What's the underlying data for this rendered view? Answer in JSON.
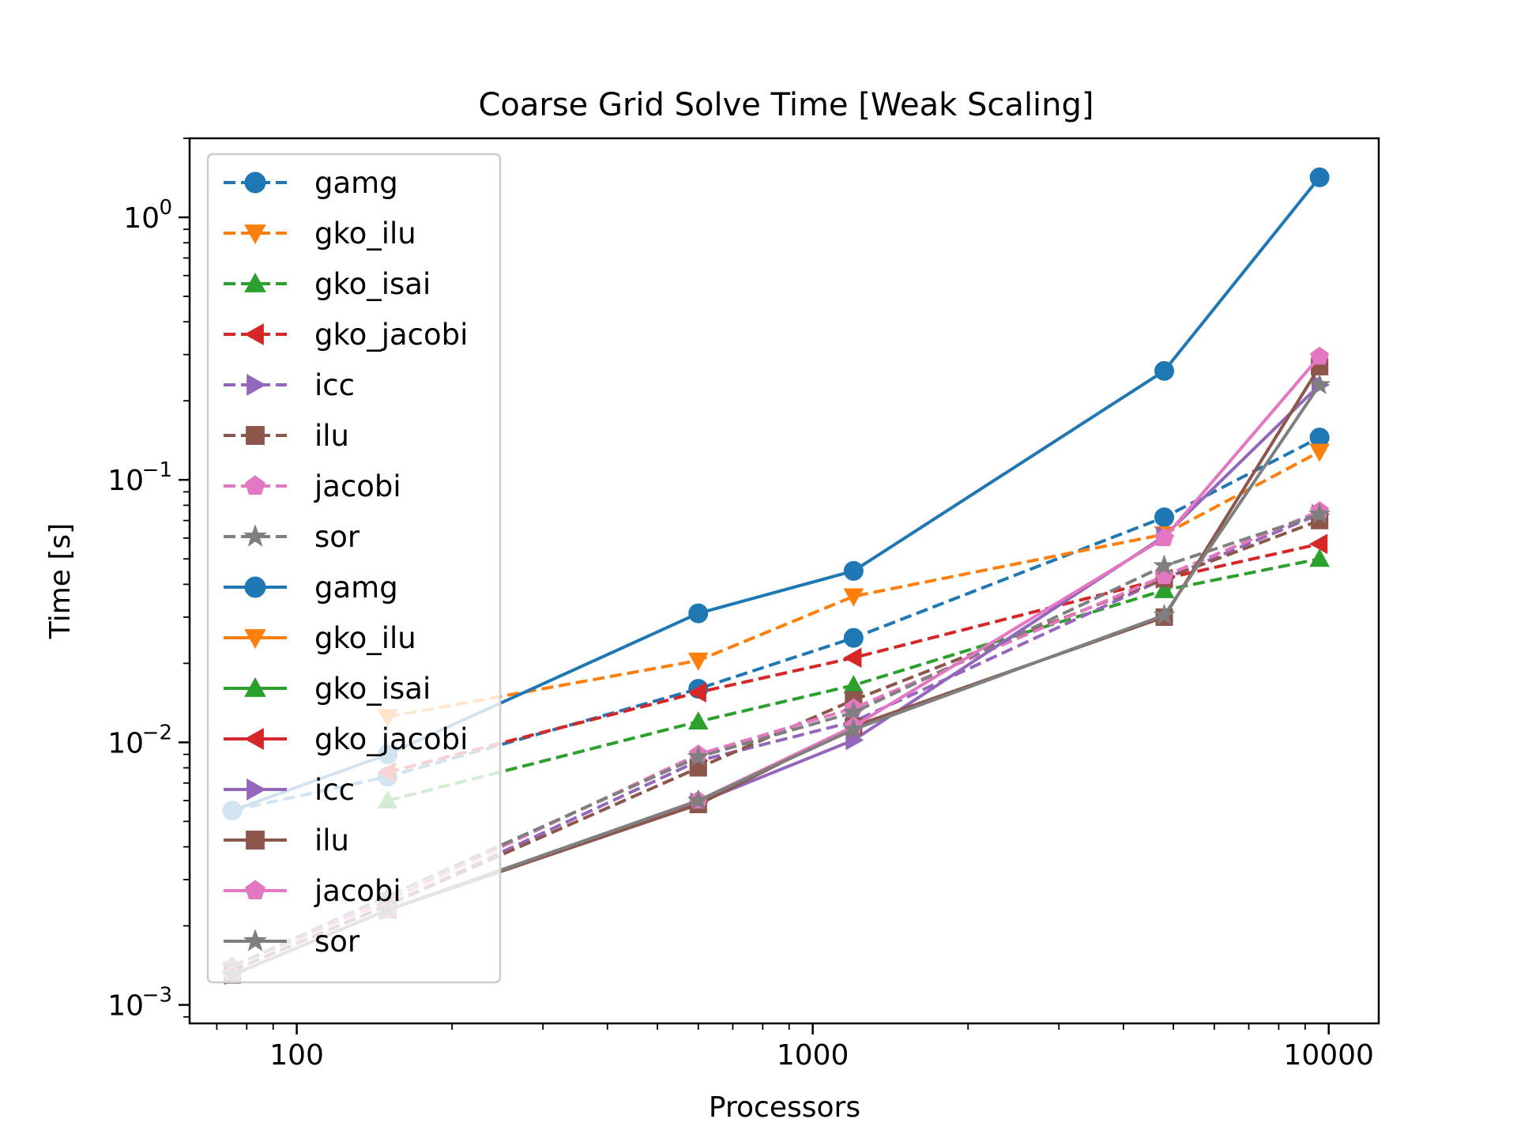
{
  "chart_data": {
    "type": "line",
    "title": "Coarse Grid Solve Time [Weak Scaling]",
    "xlabel": "Processors",
    "ylabel": "Time [s]",
    "xscale": "log",
    "yscale": "log",
    "xlim": [
      62,
      12500
    ],
    "ylim": [
      0.00085,
      2.0
    ],
    "xticks": [
      {
        "value": 100,
        "label": "100"
      },
      {
        "value": 1000,
        "label": "1000"
      },
      {
        "value": 10000,
        "label": "10000"
      }
    ],
    "yticks": [
      {
        "value": 0.001,
        "base": "10",
        "exp": "−3"
      },
      {
        "value": 0.01,
        "base": "10",
        "exp": "−2"
      },
      {
        "value": 0.1,
        "base": "10",
        "exp": "−1"
      },
      {
        "value": 1,
        "base": "10",
        "exp": "0"
      }
    ],
    "grid": false,
    "legend": "upper left",
    "x": [
      75,
      150,
      600,
      1200,
      4800,
      9600
    ],
    "series": [
      {
        "name": "gamg",
        "style": "dashed",
        "color": "#1f77b4",
        "marker": "circle",
        "values": [
          0.0055,
          0.0074,
          0.016,
          0.025,
          0.072,
          0.145
        ]
      },
      {
        "name": "gko_ilu",
        "style": "dashed",
        "color": "#ff7f0e",
        "marker": "triangle-down",
        "values": [
          null,
          0.0125,
          0.0205,
          0.036,
          0.062,
          0.128
        ]
      },
      {
        "name": "gko_isai",
        "style": "dashed",
        "color": "#2ca02c",
        "marker": "triangle-up",
        "values": [
          null,
          0.006,
          0.012,
          0.0165,
          0.038,
          0.05
        ]
      },
      {
        "name": "gko_jacobi",
        "style": "dashed",
        "color": "#d62728",
        "marker": "triangle-left",
        "values": [
          null,
          0.0077,
          0.0155,
          0.021,
          0.042,
          0.057
        ]
      },
      {
        "name": "icc",
        "style": "dashed",
        "color": "#9467bd",
        "marker": "triangle-right",
        "values": [
          0.00135,
          0.0024,
          0.0085,
          0.012,
          0.042,
          0.074
        ]
      },
      {
        "name": "ilu",
        "style": "dashed",
        "color": "#8c564b",
        "marker": "square",
        "values": [
          0.00135,
          0.0024,
          0.008,
          0.0145,
          0.042,
          0.07
        ]
      },
      {
        "name": "jacobi",
        "style": "dashed",
        "color": "#e377c2",
        "marker": "pentagon",
        "values": [
          0.0014,
          0.0025,
          0.009,
          0.0135,
          0.043,
          0.076
        ]
      },
      {
        "name": "sor",
        "style": "dashed",
        "color": "#7f7f7f",
        "marker": "star",
        "values": [
          0.0014,
          0.0026,
          0.0088,
          0.013,
          0.047,
          0.074
        ]
      },
      {
        "name": "gamg",
        "style": "solid",
        "color": "#1f77b4",
        "marker": "circle",
        "values": [
          0.0055,
          0.009,
          0.031,
          0.045,
          0.26,
          1.42
        ]
      },
      {
        "name": "gko_ilu",
        "style": "solid",
        "color": "#ff7f0e",
        "marker": "triangle-down",
        "values": [
          null,
          null,
          null,
          null,
          null,
          null
        ]
      },
      {
        "name": "gko_isai",
        "style": "solid",
        "color": "#2ca02c",
        "marker": "triangle-up",
        "values": [
          null,
          null,
          null,
          null,
          null,
          null
        ]
      },
      {
        "name": "gko_jacobi",
        "style": "solid",
        "color": "#d62728",
        "marker": "triangle-left",
        "values": [
          null,
          null,
          null,
          null,
          null,
          null
        ]
      },
      {
        "name": "icc",
        "style": "solid",
        "color": "#9467bd",
        "marker": "triangle-right",
        "values": [
          0.0013,
          0.0023,
          0.0059,
          0.0102,
          0.061,
          0.23
        ]
      },
      {
        "name": "ilu",
        "style": "solid",
        "color": "#8c564b",
        "marker": "square",
        "values": [
          0.0013,
          0.0023,
          0.0058,
          0.0115,
          0.03,
          0.27
        ]
      },
      {
        "name": "jacobi",
        "style": "solid",
        "color": "#e377c2",
        "marker": "pentagon",
        "values": [
          0.0013,
          0.0023,
          0.006,
          0.0115,
          0.06,
          0.295
        ]
      },
      {
        "name": "sor",
        "style": "solid",
        "color": "#7f7f7f",
        "marker": "star",
        "values": [
          0.0013,
          0.0023,
          0.006,
          0.0112,
          0.0305,
          0.23
        ]
      }
    ]
  }
}
